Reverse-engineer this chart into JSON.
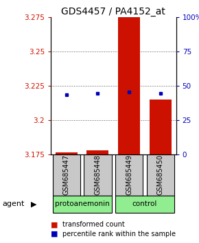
{
  "title": "GDS4457 / PA4152_at",
  "samples": [
    "GSM685447",
    "GSM685448",
    "GSM685449",
    "GSM685450"
  ],
  "groups": [
    "protoanemonin",
    "protoanemonin",
    "control",
    "control"
  ],
  "bar_values": [
    3.1762,
    3.178,
    3.275,
    3.215
  ],
  "bar_base": 3.175,
  "percentile_values": [
    3.2185,
    3.2195,
    3.2205,
    3.2195
  ],
  "ymin": 3.175,
  "ymax": 3.275,
  "yticks": [
    3.175,
    3.2,
    3.225,
    3.25,
    3.275
  ],
  "ytick_labels": [
    "3.175",
    "3.2",
    "3.225",
    "3.25",
    "3.275"
  ],
  "right_yticks": [
    0,
    25,
    50,
    75,
    100
  ],
  "right_ytick_labels": [
    "0",
    "25",
    "50",
    "75",
    "100%"
  ],
  "bar_color": "#CC1100",
  "percentile_color": "#0000BB",
  "grid_ticks": [
    3.2,
    3.225,
    3.25
  ],
  "agent_label": "agent",
  "legend_bar_label": "transformed count",
  "legend_pct_label": "percentile rank within the sample",
  "title_fontsize": 10,
  "tick_fontsize": 7.5,
  "sample_fontsize": 7,
  "agent_fontsize": 8,
  "legend_fontsize": 7
}
